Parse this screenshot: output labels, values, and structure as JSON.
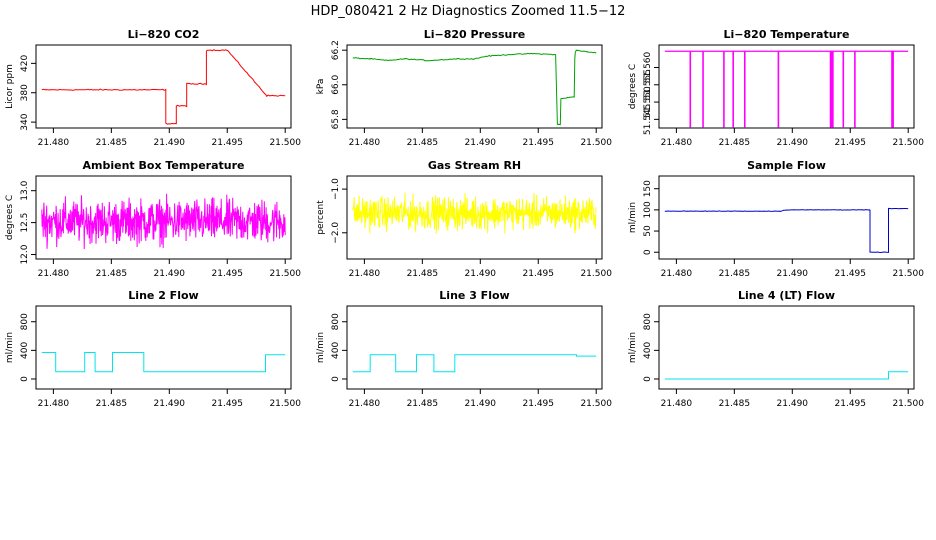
{
  "figure": {
    "title": "HDP_080421  2 Hz Diagnostics Zoomed 11.5−12"
  },
  "chart_data": [
    {
      "type": "line",
      "title": "Li−820 CO2",
      "xlabel": "",
      "ylabel": "Licor ppm",
      "xlim": [
        21.4785,
        21.5005
      ],
      "ylim": [
        332,
        445
      ],
      "x_ticks": [
        21.48,
        21.485,
        21.49,
        21.495,
        21.5
      ],
      "x_tick_labels": [
        "21.480",
        "21.485",
        "21.490",
        "21.495",
        "21.500"
      ],
      "y_ticks": [
        340,
        380,
        420
      ],
      "y_tick_labels": [
        "340",
        "380",
        "420"
      ],
      "color": "#ff0000",
      "noise": 1.2,
      "series": [
        {
          "x": [
            21.479,
            21.4897,
            21.4897,
            21.4906,
            21.4906,
            21.4915,
            21.4915,
            21.4932,
            21.4932,
            21.495,
            21.495,
            21.4984,
            21.4984,
            21.5
          ],
          "y": [
            384,
            384,
            338,
            338,
            362,
            362,
            392,
            392,
            438,
            438,
            438,
            376,
            376,
            376
          ]
        }
      ]
    },
    {
      "type": "line",
      "title": "Li−820 Pressure",
      "xlabel": "",
      "ylabel": "kPa",
      "xlim": [
        21.4785,
        21.5005
      ],
      "ylim": [
        65.75,
        66.23
      ],
      "x_ticks": [
        21.48,
        21.485,
        21.49,
        21.495,
        21.5
      ],
      "x_tick_labels": [
        "21.480",
        "21.485",
        "21.490",
        "21.495",
        "21.500"
      ],
      "y_ticks": [
        65.8,
        66.0,
        66.2
      ],
      "y_tick_labels": [
        "65.8",
        "66.0",
        "66.2"
      ],
      "color": "#00a000",
      "noise": 0.004,
      "series": [
        {
          "x": [
            21.479,
            21.4805,
            21.482,
            21.4835,
            21.4855,
            21.488,
            21.4895,
            21.4905,
            21.4925,
            21.4945,
            21.4965,
            21.49665,
            21.4967,
            21.4968,
            21.4969,
            21.49695,
            21.4975,
            21.4981,
            21.49815,
            21.4982,
            21.4983,
            21.4992,
            21.5
          ],
          "y": [
            66.155,
            66.15,
            66.14,
            66.15,
            66.14,
            66.15,
            66.15,
            66.165,
            66.175,
            66.18,
            66.175,
            65.77,
            65.77,
            65.77,
            65.77,
            65.92,
            65.925,
            65.93,
            66.15,
            66.19,
            66.2,
            66.19,
            66.185
          ]
        }
      ]
    },
    {
      "type": "line",
      "title": "Li−820 Temperature",
      "xlabel": "",
      "ylabel": "degrees C",
      "xlim": [
        21.4785,
        21.5005
      ],
      "ylim": [
        51.5425,
        51.5665
      ],
      "x_ticks": [
        21.48,
        21.485,
        21.49,
        21.495,
        21.5
      ],
      "x_tick_labels": [
        "21.480",
        "21.485",
        "21.490",
        "21.495",
        "21.500"
      ],
      "y_ticks": [
        51.545,
        51.55,
        51.555,
        51.56
      ],
      "y_tick_labels": [
        "51.545",
        "51.550",
        "51.555",
        "51.560"
      ],
      "color": "#ff00ff",
      "baseline": 51.5647,
      "low": 51.5427,
      "spikes": [
        21.4812,
        21.4823,
        21.4841,
        21.4849,
        21.4859,
        21.4888,
        21.4933,
        21.4934,
        21.4935,
        21.4944,
        21.4954,
        21.4986,
        21.4987
      ]
    },
    {
      "type": "line",
      "title": "Ambient Box Temperature",
      "xlabel": "",
      "ylabel": "degrees C",
      "xlim": [
        21.4785,
        21.5005
      ],
      "ylim": [
        11.93,
        13.23
      ],
      "x_ticks": [
        21.48,
        21.485,
        21.49,
        21.495,
        21.5
      ],
      "x_tick_labels": [
        "21.480",
        "21.485",
        "21.490",
        "21.495",
        "21.500"
      ],
      "y_ticks": [
        12.0,
        12.5,
        13.0
      ],
      "y_tick_labels": [
        "12.0",
        "12.5",
        "13.0"
      ],
      "color": "#ff00ff",
      "mean": 12.52,
      "amplitude": 0.5,
      "x_range": [
        21.479,
        21.5
      ]
    },
    {
      "type": "line",
      "title": "Gas Stream RH",
      "xlabel": "",
      "ylabel": "percent",
      "xlim": [
        21.4785,
        21.5005
      ],
      "ylim": [
        -2.6,
        -0.7
      ],
      "x_ticks": [
        21.48,
        21.485,
        21.49,
        21.495,
        21.5
      ],
      "x_tick_labels": [
        "21.480",
        "21.485",
        "21.490",
        "21.495",
        "21.500"
      ],
      "y_ticks": [
        -2.0,
        -1.0
      ],
      "y_tick_labels": [
        "−2.0",
        "−1.0"
      ],
      "color": "#ffff00",
      "mean": -1.55,
      "amplitude": 0.55,
      "x_range": [
        21.479,
        21.5
      ]
    },
    {
      "type": "line",
      "title": "Sample Flow",
      "xlabel": "",
      "ylabel": "ml/min",
      "xlim": [
        21.4785,
        21.5005
      ],
      "ylim": [
        -16,
        180
      ],
      "x_ticks": [
        21.48,
        21.485,
        21.49,
        21.495,
        21.5
      ],
      "x_tick_labels": [
        "21.480",
        "21.485",
        "21.490",
        "21.495",
        "21.500"
      ],
      "y_ticks": [
        0,
        50,
        100,
        150
      ],
      "y_tick_labels": [
        "0",
        "50",
        "100",
        "150"
      ],
      "color": "#0000cc",
      "noise": 0.8,
      "series": [
        {
          "x": [
            21.479,
            21.489,
            21.4895,
            21.4967,
            21.4967,
            21.4983,
            21.4983,
            21.5
          ],
          "y": [
            97,
            97,
            100,
            100,
            0,
            0,
            103,
            103
          ]
        }
      ]
    },
    {
      "type": "line",
      "title": "Line 2 Flow",
      "xlabel": "",
      "ylabel": "ml/min",
      "xlim": [
        21.4785,
        21.5005
      ],
      "ylim": [
        -140,
        1020
      ],
      "x_ticks": [
        21.48,
        21.485,
        21.49,
        21.495,
        21.5
      ],
      "x_tick_labels": [
        "21.480",
        "21.485",
        "21.490",
        "21.495",
        "21.500"
      ],
      "y_ticks": [
        0,
        400,
        800
      ],
      "y_tick_labels": [
        "0",
        "400",
        "800"
      ],
      "color": "#00e5ee",
      "noise": 0,
      "series": [
        {
          "x": [
            21.479,
            21.4802,
            21.4802,
            21.4827,
            21.4827,
            21.4836,
            21.4836,
            21.4851,
            21.4851,
            21.486,
            21.486,
            21.4878,
            21.4878,
            21.4983,
            21.4983,
            21.5
          ],
          "y": [
            370,
            370,
            100,
            100,
            370,
            370,
            100,
            100,
            370,
            370,
            370,
            370,
            100,
            100,
            340,
            340
          ]
        }
      ]
    },
    {
      "type": "line",
      "title": "Line 3 Flow",
      "xlabel": "",
      "ylabel": "ml/min",
      "xlim": [
        21.4785,
        21.5005
      ],
      "ylim": [
        -140,
        1020
      ],
      "x_ticks": [
        21.48,
        21.485,
        21.49,
        21.495,
        21.5
      ],
      "x_tick_labels": [
        "21.480",
        "21.485",
        "21.490",
        "21.495",
        "21.500"
      ],
      "y_ticks": [
        0,
        400,
        800
      ],
      "y_tick_labels": [
        "0",
        "400",
        "800"
      ],
      "color": "#00e5ee",
      "noise": 0,
      "series": [
        {
          "x": [
            21.479,
            21.4805,
            21.4805,
            21.4827,
            21.4827,
            21.4845,
            21.4845,
            21.486,
            21.486,
            21.4878,
            21.4878,
            21.4983,
            21.4983,
            21.5
          ],
          "y": [
            100,
            100,
            340,
            340,
            100,
            100,
            340,
            340,
            100,
            100,
            340,
            340,
            320,
            320
          ]
        }
      ]
    },
    {
      "type": "line",
      "title": "Line 4 (LT) Flow",
      "xlabel": "",
      "ylabel": "ml/min",
      "xlim": [
        21.4785,
        21.5005
      ],
      "ylim": [
        -140,
        1020
      ],
      "x_ticks": [
        21.48,
        21.485,
        21.49,
        21.495,
        21.5
      ],
      "x_tick_labels": [
        "21.480",
        "21.485",
        "21.490",
        "21.495",
        "21.500"
      ],
      "y_ticks": [
        0,
        400,
        800
      ],
      "y_tick_labels": [
        "0",
        "400",
        "800"
      ],
      "color": "#00e5ee",
      "noise": 0,
      "series": [
        {
          "x": [
            21.479,
            21.4983,
            21.4983,
            21.5
          ],
          "y": [
            0,
            0,
            100,
            100
          ]
        }
      ]
    }
  ]
}
